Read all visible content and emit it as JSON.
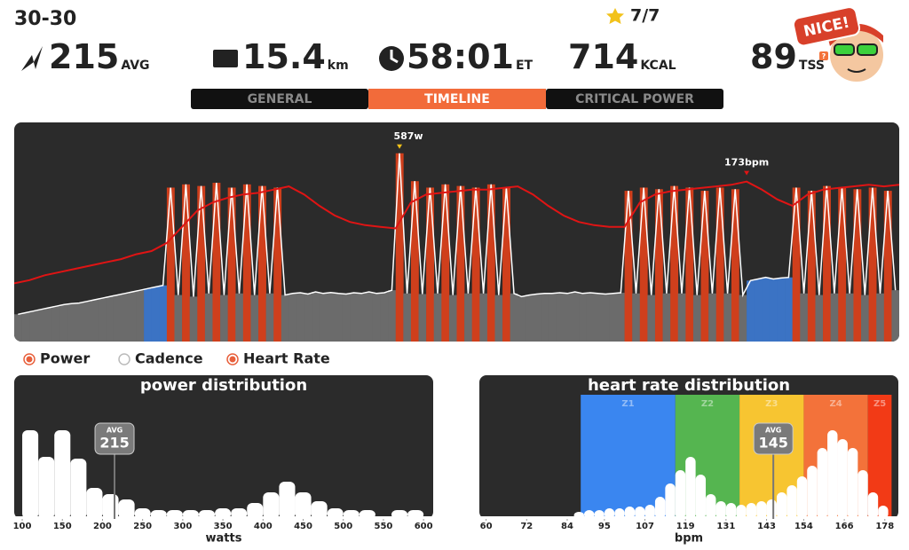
{
  "header": {
    "workout": "30-30",
    "stars": "7/7",
    "badge": "NICE!"
  },
  "stats": [
    {
      "value": "215",
      "unit": "AVG"
    },
    {
      "value": "15.4",
      "unit": "km"
    },
    {
      "value": "58:01",
      "unit": "ET"
    },
    {
      "value": "714",
      "unit": "KCAL"
    },
    {
      "value": "89",
      "unit": "TSS"
    }
  ],
  "tss_info": "?",
  "tabs": [
    {
      "label": "GENERAL",
      "active": false
    },
    {
      "label": "TIMELINE",
      "active": true
    },
    {
      "label": "CRITICAL POWER",
      "active": false
    }
  ],
  "timeline": {
    "power_label": "587w",
    "hr_label": "173bpm",
    "power_ylim": [
      0,
      650
    ],
    "hr_ylim": [
      74,
      203
    ],
    "power_zone_limits": [
      160,
      205
    ],
    "power_zone_colors": [
      "#6b6b6b",
      "#3b73c4",
      "#cf3f1c"
    ],
    "hr_color": "#e01414",
    "line_color": "#ffffff",
    "power": [
      85,
      90,
      95,
      100,
      105,
      110,
      115,
      118,
      120,
      125,
      130,
      135,
      140,
      145,
      150,
      155,
      160,
      165,
      170,
      175,
      480,
      145,
      490,
      140,
      485,
      150,
      495,
      145,
      480,
      150,
      490,
      145,
      485,
      150,
      480,
      145,
      150,
      152,
      148,
      155,
      150,
      153,
      150,
      148,
      152,
      150,
      155,
      150,
      152,
      160,
      587,
      150,
      500,
      148,
      480,
      150,
      490,
      145,
      485,
      150,
      480,
      150,
      490,
      145,
      480,
      150,
      140,
      145,
      148,
      150,
      150,
      152,
      150,
      155,
      150,
      152,
      150,
      148,
      150,
      152,
      470,
      150,
      480,
      145,
      475,
      150,
      485,
      150,
      480,
      145,
      470,
      150,
      480,
      150,
      475,
      145,
      190,
      195,
      200,
      195,
      198,
      200,
      480,
      150,
      470,
      145,
      485,
      150,
      480,
      150,
      475,
      145,
      480,
      150,
      470,
      160
    ],
    "heart_rate": [
      110,
      112,
      115,
      117,
      119,
      121,
      123,
      125,
      128,
      130,
      135,
      145,
      155,
      160,
      163,
      165,
      166,
      168,
      170,
      165,
      158,
      152,
      148,
      146,
      145,
      144,
      160,
      165,
      166,
      167,
      168,
      168,
      169,
      170,
      165,
      158,
      152,
      148,
      146,
      145,
      145,
      160,
      165,
      167,
      168,
      169,
      170,
      171,
      173,
      168,
      162,
      158,
      165,
      168,
      169,
      170,
      171,
      170,
      171
    ]
  },
  "legend": [
    {
      "label": "Power",
      "color": "#e8603c"
    },
    {
      "label": "Cadence",
      "color": "#ffffff"
    },
    {
      "label": "Heart Rate",
      "color": "#e8603c"
    }
  ],
  "power_distribution": {
    "title": "power distribution",
    "xlabel": "watts",
    "bins": [
      100,
      120,
      140,
      160,
      180,
      200,
      220,
      240,
      260,
      280,
      300,
      320,
      340,
      360,
      380,
      400,
      420,
      440,
      460,
      480,
      500,
      520,
      540,
      560,
      580,
      600
    ],
    "counts": [
      100,
      70,
      100,
      68,
      35,
      28,
      22,
      12,
      10,
      10,
      10,
      10,
      12,
      12,
      18,
      30,
      42,
      30,
      20,
      12,
      10,
      10,
      0,
      10,
      10
    ],
    "xlim": [
      90,
      612
    ],
    "ylim": [
      0,
      140
    ],
    "xticks": [
      100,
      150,
      200,
      250,
      300,
      350,
      400,
      450,
      500,
      550,
      600
    ],
    "avg": {
      "label": "AVG",
      "value": 215
    }
  },
  "hr_distribution": {
    "title": "heart rate distribution",
    "xlabel": "bpm",
    "bins": [
      86,
      89,
      92,
      95,
      98,
      101,
      104,
      107,
      110,
      113,
      116,
      119,
      122,
      125,
      128,
      131,
      134,
      137,
      140,
      143,
      146,
      149,
      152,
      155,
      158,
      161,
      164,
      167,
      170,
      173,
      176,
      179
    ],
    "counts": [
      8,
      10,
      10,
      12,
      12,
      14,
      14,
      16,
      25,
      40,
      55,
      70,
      50,
      28,
      20,
      18,
      16,
      18,
      20,
      22,
      30,
      38,
      48,
      60,
      80,
      100,
      90,
      80,
      55,
      30,
      15
    ],
    "xlim": [
      58,
      182
    ],
    "ylim": [
      0,
      140
    ],
    "xticks": [
      60,
      72,
      84,
      95,
      107,
      119,
      131,
      143,
      154,
      166,
      178
    ],
    "zones": [
      {
        "name": "Z1",
        "from": 88,
        "to": 116,
        "color": "#3a86f0"
      },
      {
        "name": "Z2",
        "from": 116,
        "to": 135,
        "color": "#55b550"
      },
      {
        "name": "Z3",
        "from": 135,
        "to": 154,
        "color": "#f7c531"
      },
      {
        "name": "Z4",
        "from": 154,
        "to": 173,
        "color": "#f3723a"
      },
      {
        "name": "Z5",
        "from": 173,
        "to": 180,
        "color": "#f23a16"
      }
    ],
    "avg": {
      "label": "AVG",
      "value": 145
    }
  }
}
